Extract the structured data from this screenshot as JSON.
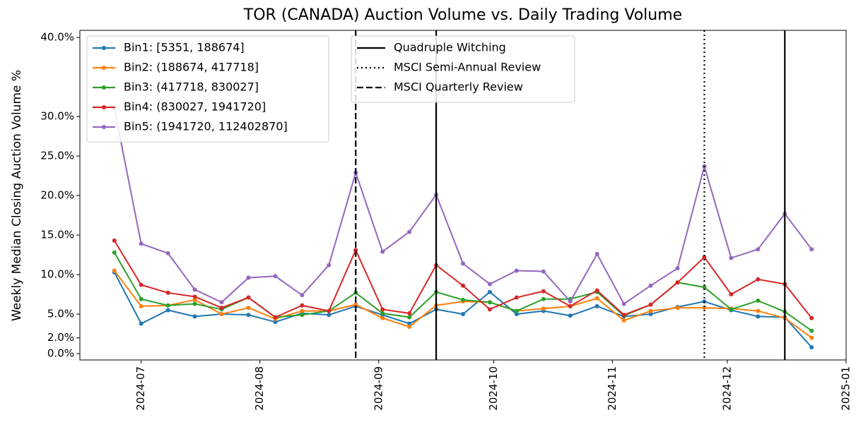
{
  "chart_data": {
    "type": "line",
    "title": "TOR (CANADA) Auction Volume vs. Daily Trading Volume",
    "y_label": "Weekly Median Closing Auction Volume %",
    "x": [
      "2024-06-24",
      "2024-07-01",
      "2024-07-08",
      "2024-07-15",
      "2024-07-22",
      "2024-07-29",
      "2024-08-05",
      "2024-08-12",
      "2024-08-19",
      "2024-08-26",
      "2024-09-02",
      "2024-09-09",
      "2024-09-16",
      "2024-09-23",
      "2024-09-30",
      "2024-10-07",
      "2024-10-14",
      "2024-10-21",
      "2024-10-28",
      "2024-11-04",
      "2024-11-11",
      "2024-11-18",
      "2024-11-25",
      "2024-12-02",
      "2024-12-09",
      "2024-12-16",
      "2024-12-23"
    ],
    "xlim": [
      "2024-06-15",
      "2025-01-01"
    ],
    "xticks": [
      {
        "value": "2024-07-01",
        "label": "2024-07"
      },
      {
        "value": "2024-08-01",
        "label": "2024-08"
      },
      {
        "value": "2024-09-01",
        "label": "2024-09"
      },
      {
        "value": "2024-10-01",
        "label": "2024-10"
      },
      {
        "value": "2024-11-01",
        "label": "2024-11"
      },
      {
        "value": "2024-12-01",
        "label": "2024-12"
      },
      {
        "value": "2025-01-01",
        "label": "2025-01"
      }
    ],
    "ylim": [
      -0.8,
      40.9
    ],
    "yticks": [
      {
        "value": 0,
        "label": "0.0%"
      },
      {
        "value": 2,
        "label": "2.0%"
      },
      {
        "value": 5,
        "label": "5.0%"
      },
      {
        "value": 10,
        "label": "10.0%"
      },
      {
        "value": 15,
        "label": "15.0%"
      },
      {
        "value": 20,
        "label": "20.0%"
      },
      {
        "value": 25,
        "label": "25.0%"
      },
      {
        "value": 30,
        "label": "30.0%"
      },
      {
        "value": 40,
        "label": "40.0%"
      }
    ],
    "legend": "upper left",
    "series": [
      {
        "name": "Bin1: [5351, 188674]",
        "color": "#1f77b4",
        "values": [
          10.3,
          3.8,
          5.5,
          4.7,
          5.0,
          4.9,
          4.0,
          5.1,
          4.9,
          6.0,
          4.9,
          3.8,
          5.6,
          5.0,
          7.8,
          5.0,
          5.4,
          4.8,
          6.0,
          4.7,
          5.0,
          5.9,
          6.6,
          5.5,
          4.7,
          4.6,
          0.8
        ]
      },
      {
        "name": "Bin2: (188674, 417718]",
        "color": "#ff7f0e",
        "values": [
          10.5,
          6.0,
          6.1,
          6.8,
          5.0,
          5.8,
          4.4,
          5.4,
          5.4,
          6.2,
          4.5,
          3.4,
          6.1,
          6.6,
          6.5,
          5.4,
          5.7,
          6.0,
          7.0,
          4.2,
          5.4,
          5.8,
          5.8,
          5.7,
          5.4,
          4.5,
          2.0
        ]
      },
      {
        "name": "Bin3: (417718, 830027]",
        "color": "#2ca02c",
        "values": [
          12.8,
          6.9,
          6.1,
          6.3,
          5.6,
          7.1,
          4.6,
          4.9,
          5.4,
          7.7,
          5.1,
          4.6,
          7.8,
          6.8,
          6.5,
          5.4,
          6.9,
          6.9,
          7.8,
          4.8,
          6.2,
          9.0,
          8.4,
          5.6,
          6.7,
          5.3,
          2.9
        ]
      },
      {
        "name": "Bin4: (830027, 1941720]",
        "color": "#d62728",
        "values": [
          14.3,
          8.7,
          7.7,
          7.2,
          5.8,
          7.1,
          4.6,
          6.1,
          5.4,
          13.1,
          5.6,
          5.1,
          11.2,
          8.6,
          5.6,
          7.1,
          7.9,
          6.0,
          8.0,
          4.9,
          6.2,
          9.0,
          12.2,
          7.5,
          9.4,
          8.8,
          4.5
        ]
      },
      {
        "name": "Bin5: (1941720, 112402870]",
        "color": "#9467bd",
        "values": [
          31,
          13.9,
          12.7,
          8.1,
          6.5,
          9.6,
          9.8,
          7.4,
          11.2,
          22.9,
          12.9,
          15.4,
          20.1,
          11.4,
          8.8,
          10.5,
          10.4,
          6.6,
          12.6,
          6.3,
          8.6,
          10.8,
          23.7,
          12.1,
          13.2,
          17.7,
          13.2
        ]
      }
    ],
    "events_legend": "upper center",
    "events": [
      {
        "name": "Quadruple Witching",
        "linestyle": "solid",
        "color": "#000000",
        "x": [
          "2024-09-16",
          "2024-12-16"
        ]
      },
      {
        "name": "MSCI Semi-Annual Review",
        "linestyle": "dotted",
        "color": "#000000",
        "x": [
          "2024-11-25"
        ]
      },
      {
        "name": "MSCI Quarterly Review",
        "linestyle": "dashed",
        "color": "#000000",
        "x": [
          "2024-08-26"
        ]
      }
    ]
  }
}
